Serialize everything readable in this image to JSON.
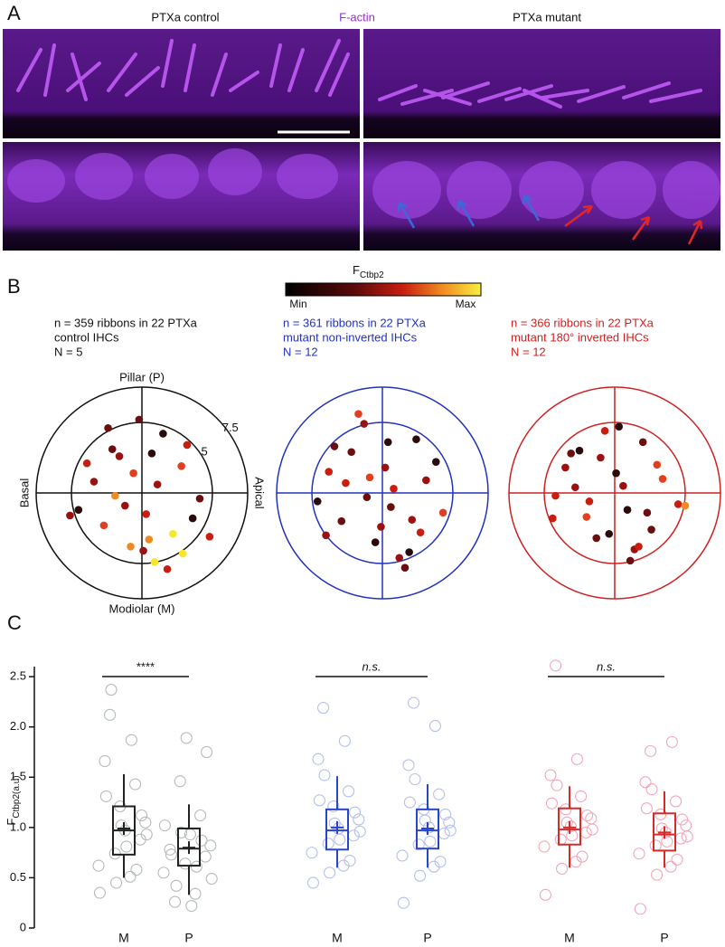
{
  "panel_a": {
    "label": "A",
    "left_title": "PTXa control",
    "center_title": "F-actin",
    "right_title": "PTXa mutant"
  },
  "panel_b": {
    "label": "B",
    "colorbar_title": "F",
    "colorbar_sub": "Ctbp2",
    "min_label": "Min",
    "max_label": "Max"
  },
  "panel_c": {
    "label": "C"
  },
  "chart_data": [
    {
      "type": "polar-scatter",
      "caption": [
        "n = 359 ribbons in 22 PTXa",
        "control IHCs",
        "N = 5"
      ],
      "caption_color": "#111111",
      "axis_color": "#111111",
      "axis_labels": {
        "top": "Pillar (P)",
        "bottom": "Modiolar (M)",
        "left": "Basal",
        "right": "Apical"
      },
      "rlim": [
        0,
        7.5
      ],
      "rticks": [
        5,
        7.5
      ],
      "show_rtick_labels": true,
      "x": [
        -2.1,
        1.5,
        0.3,
        -3.4,
        2.8,
        -0.8,
        4.1,
        -1.6,
        0.9,
        -4.5,
        3.2,
        -2.7,
        1.1,
        -0.2,
        2.2,
        -3.9,
        0.5,
        -1.2,
        3.6,
        -0.6,
        1.8,
        -2.4,
        0.1,
        2.9,
        -1.9,
        0.7,
        4.8,
        -5.1
      ],
      "y": [
        3.1,
        4.2,
        -1.5,
        0.8,
        1.9,
        -3.8,
        -0.4,
        2.6,
        -4.9,
        -1.2,
        3.4,
        -2.3,
        0.6,
        5.2,
        -2.9,
        2.1,
        -3.3,
        -0.9,
        -1.8,
        1.4,
        -5.4,
        4.6,
        -4.1,
        -4.3,
        -0.2,
        2.8,
        -3.1,
        -1.6
      ],
      "colors": [
        "#6a0e0e",
        "#2a0a0a",
        "#c81e10",
        "#9b1010",
        "#e04020",
        "#f08a20",
        "#6a0e0e",
        "#9b1010",
        "#f7e62a",
        "#2a0a0a",
        "#c81e10",
        "#e04020",
        "#9b1010",
        "#6a0e0e",
        "#f7e62a",
        "#c81e10",
        "#f08a20",
        "#9b1010",
        "#2a0a0a",
        "#e04020",
        "#c81e10",
        "#6a0e0e",
        "#9b1010",
        "#f7e62a",
        "#f08a20",
        "#2a0a0a",
        "#c81e10",
        "#9b1010"
      ]
    },
    {
      "type": "polar-scatter",
      "caption": [
        "n = 361 ribbons in 22 PTXa",
        "mutant non-inverted IHCs",
        "N = 12"
      ],
      "caption_color": "#2233bb",
      "axis_color": "#2233bb",
      "rlim": [
        0,
        7.5
      ],
      "rticks": [
        5,
        7.5
      ],
      "show_rtick_labels": false,
      "x": [
        -1.3,
        2.4,
        0.6,
        -3.8,
        3.1,
        -0.5,
        4.3,
        -2.2,
        1.2,
        -4.6,
        2.7,
        -2.9,
        0.2,
        -1.7,
        1.9,
        -3.4,
        0.8,
        -0.1,
        3.8,
        -1.1,
        2.1,
        -2.6,
        0.4,
        -4.0,
        1.6,
        -0.9
      ],
      "y": [
        4.9,
        3.8,
        -1.0,
        1.5,
        0.9,
        -3.5,
        -1.4,
        2.9,
        -4.6,
        -0.6,
        -2.8,
        -2.0,
        1.8,
        5.6,
        -4.2,
        3.3,
        0.3,
        -2.4,
        2.2,
        -0.3,
        -1.9,
        0.7,
        3.6,
        -3.0,
        -5.3,
        1.1
      ],
      "colors": [
        "#9b1010",
        "#2a0a0a",
        "#6a0e0e",
        "#c81e10",
        "#9b1010",
        "#2a0a0a",
        "#e04020",
        "#6a0e0e",
        "#9b1010",
        "#2a0a0a",
        "#c81e10",
        "#6a0e0e",
        "#9b1010",
        "#e04020",
        "#2a0a0a",
        "#6a0e0e",
        "#c81e10",
        "#9b1010",
        "#2a0a0a",
        "#6a0e0e",
        "#9b1010",
        "#c81e10",
        "#2a0a0a",
        "#9b1010",
        "#6a0e0e",
        "#e04020"
      ]
    },
    {
      "type": "polar-scatter",
      "caption": [
        "n = 366 ribbons in 22 PTXa",
        "mutant 180° inverted IHCs",
        "N = 12"
      ],
      "caption_color": "#cc2222",
      "axis_color": "#cc2222",
      "rlim": [
        0,
        7.5
      ],
      "rticks": [
        5,
        7.5
      ],
      "show_rtick_labels": false,
      "x": [
        -0.7,
        2.0,
        0.9,
        -3.5,
        3.4,
        -1.3,
        4.5,
        -2.5,
        1.4,
        -4.2,
        2.6,
        -2.0,
        0.1,
        -1.0,
        1.7,
        -3.1,
        0.6,
        -0.4,
        3.0,
        -1.8,
        2.3,
        -2.8,
        0.3,
        -4.4,
        1.1,
        5.0
      ],
      "y": [
        4.4,
        3.6,
        -1.2,
        1.8,
        1.0,
        -3.2,
        -0.8,
        3.0,
        -4.0,
        -0.2,
        -2.6,
        -1.7,
        1.4,
        2.5,
        -3.8,
        2.8,
        0.5,
        -2.9,
        2.0,
        -0.6,
        -1.4,
        0.4,
        4.7,
        -1.8,
        -4.8,
        -0.9
      ],
      "colors": [
        "#c81e10",
        "#6a0e0e",
        "#2a0a0a",
        "#9b1010",
        "#e04020",
        "#6a0e0e",
        "#c81e10",
        "#2a0a0a",
        "#9b1010",
        "#c81e10",
        "#6a0e0e",
        "#e04020",
        "#2a0a0a",
        "#9b1010",
        "#c81e10",
        "#6a0e0e",
        "#9b1010",
        "#2a0a0a",
        "#e04020",
        "#c81e10",
        "#6a0e0e",
        "#9b1010",
        "#2a0a0a",
        "#c81e10",
        "#6a0e0e",
        "#f08a20"
      ]
    },
    {
      "type": "box",
      "y_label": "F",
      "y_label_sub": "Ctbp2(a.u)",
      "ylim": [
        0,
        2.6
      ],
      "yticks": [
        0,
        0.5,
        {
          "value": 1,
          "label": "1.0"
        },
        1.5,
        {
          "value": 2,
          "label": "2.0"
        },
        2.5
      ],
      "groups": [
        {
          "color": "#222222",
          "point_color": "#b4bbb6",
          "significance": "****",
          "boxes": [
            {
              "category": "M",
              "q1": 0.73,
              "median": 0.97,
              "q3": 1.21,
              "whisker_low": 0.5,
              "whisker_high": 1.53,
              "mean": 0.99,
              "points": [
                0.62,
                1.05,
                0.88,
                1.43,
                0.51,
                0.97,
                1.21,
                0.74,
                2.12,
                1.66,
                0.35,
                0.93,
                1.12,
                0.58,
                1.87,
                0.81,
                1.02,
                0.45,
                2.37,
                1.31
              ]
            },
            {
              "category": "P",
              "q1": 0.62,
              "median": 0.79,
              "q3": 0.99,
              "whisker_low": 0.33,
              "whisker_high": 1.23,
              "mean": 0.8,
              "points": [
                0.55,
                0.82,
                0.71,
                1.12,
                0.34,
                0.93,
                0.64,
                1.46,
                0.26,
                0.78,
                1.02,
                0.49,
                1.75,
                0.87,
                0.61,
                0.22,
                1.89,
                0.95,
                0.42,
                0.73
              ]
            }
          ]
        },
        {
          "color": "#2a45c8",
          "point_color": "#b4bfeb",
          "significance": "n.s.",
          "boxes": [
            {
              "category": "M",
              "q1": 0.78,
              "median": 0.97,
              "q3": 1.18,
              "whisker_low": 0.6,
              "whisker_high": 1.51,
              "mean": 1.0,
              "points": [
                0.75,
                1.08,
                0.92,
                1.36,
                0.62,
                0.99,
                1.21,
                0.84,
                2.19,
                1.68,
                0.45,
                0.96,
                1.15,
                0.67,
                1.86,
                0.88,
                1.04,
                0.55,
                1.52,
                1.27
              ]
            },
            {
              "category": "P",
              "q1": 0.79,
              "median": 0.97,
              "q3": 1.18,
              "whisker_low": 0.6,
              "whisker_high": 1.43,
              "mean": 0.99,
              "points": [
                0.72,
                1.05,
                0.94,
                1.33,
                0.61,
                1.0,
                1.18,
                0.83,
                2.24,
                1.62,
                0.25,
                0.97,
                1.13,
                0.66,
                2.01,
                0.86,
                1.07,
                0.52,
                1.48,
                1.25
              ]
            }
          ]
        },
        {
          "color": "#d42a2a",
          "point_color": "#f0a6b8",
          "significance": "n.s.",
          "boxes": [
            {
              "category": "M",
              "q1": 0.83,
              "median": 0.98,
              "q3": 1.19,
              "whisker_low": 0.6,
              "whisker_high": 1.41,
              "mean": 1.0,
              "points": [
                0.81,
                1.09,
                0.95,
                1.31,
                0.66,
                1.01,
                1.18,
                0.88,
                2.61,
                1.52,
                0.33,
                0.98,
                1.12,
                0.71,
                1.68,
                0.92,
                1.05,
                0.59,
                1.42,
                1.24
              ]
            },
            {
              "category": "P",
              "q1": 0.77,
              "median": 0.93,
              "q3": 1.14,
              "whisker_low": 0.6,
              "whisker_high": 1.36,
              "mean": 0.95,
              "points": [
                0.74,
                1.02,
                0.89,
                1.26,
                0.61,
                0.95,
                1.13,
                0.82,
                1.76,
                1.45,
                0.19,
                0.91,
                1.08,
                0.68,
                1.85,
                0.86,
                0.99,
                0.53,
                1.38,
                1.19
              ]
            }
          ]
        }
      ]
    }
  ]
}
